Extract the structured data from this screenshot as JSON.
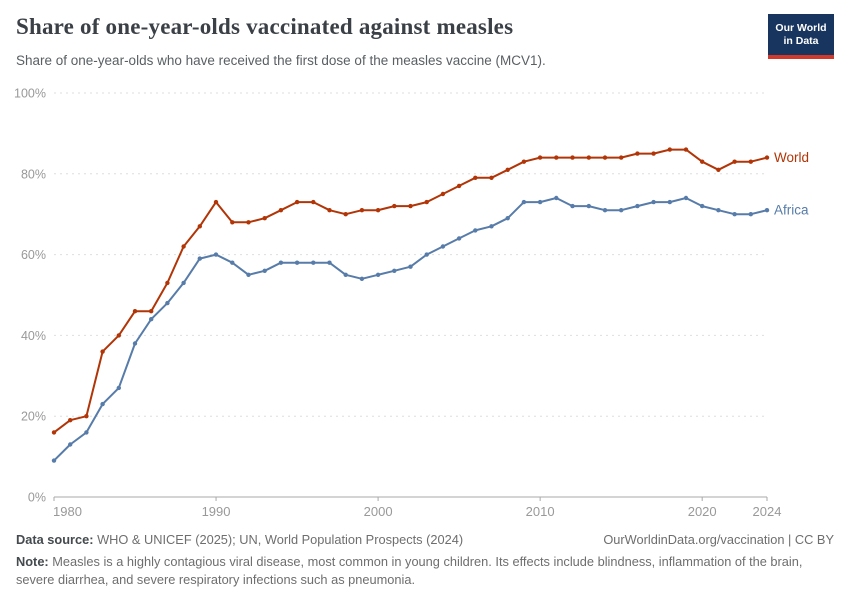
{
  "header": {
    "logo": {
      "line1": "Our World",
      "line2": "in Data",
      "bg_color": "#17355f",
      "accent_color": "#d0392b"
    }
  },
  "chart_data": {
    "type": "line",
    "title": "Share of one-year-olds vaccinated against measles",
    "subtitle": "Share of one-year-olds who have received the first dose of the measles vaccine (MCV1).",
    "x": [
      1980,
      1981,
      1982,
      1983,
      1984,
      1985,
      1986,
      1987,
      1988,
      1989,
      1990,
      1991,
      1992,
      1993,
      1994,
      1995,
      1996,
      1997,
      1998,
      1999,
      2000,
      2001,
      2002,
      2003,
      2004,
      2005,
      2006,
      2007,
      2008,
      2009,
      2010,
      2011,
      2012,
      2013,
      2014,
      2015,
      2016,
      2017,
      2018,
      2019,
      2020,
      2021,
      2022,
      2023,
      2024
    ],
    "series": [
      {
        "name": "World",
        "color": "#b13507",
        "values": [
          16,
          19,
          20,
          36,
          40,
          46,
          46,
          53,
          62,
          67,
          73,
          68,
          68,
          69,
          71,
          73,
          73,
          71,
          70,
          71,
          71,
          72,
          72,
          73,
          75,
          77,
          79,
          79,
          81,
          83,
          84,
          84,
          84,
          84,
          84,
          84,
          85,
          85,
          86,
          86,
          83,
          81,
          83,
          83,
          84
        ]
      },
      {
        "name": "Africa",
        "color": "#577ca9",
        "values": [
          9,
          13,
          16,
          23,
          27,
          38,
          44,
          48,
          53,
          59,
          60,
          58,
          55,
          56,
          58,
          58,
          58,
          58,
          55,
          54,
          55,
          56,
          57,
          60,
          62,
          64,
          66,
          67,
          69,
          73,
          73,
          74,
          72,
          72,
          71,
          71,
          72,
          73,
          73,
          74,
          72,
          71,
          70,
          70,
          71
        ]
      }
    ],
    "xlabel": "",
    "ylabel": "",
    "xlim": [
      1980,
      2024
    ],
    "ylim": [
      0,
      100
    ],
    "yticks": [
      0,
      20,
      40,
      60,
      80,
      100
    ],
    "ytick_suffix": "%",
    "xticks": [
      1980,
      1990,
      2000,
      2010,
      2020,
      2024
    ],
    "grid": "dashed horizontal",
    "legend_position": "end-of-line labels"
  },
  "footer": {
    "datasource_label": "Data source:",
    "datasource_text": " WHO & UNICEF (2025); UN, World Population Prospects (2024)",
    "citation_link": "OurWorldinData.org/vaccination",
    "license_sep": " | ",
    "license": "CC BY",
    "note_label": "Note:",
    "note_text": " Measles is a highly contagious viral disease, most common in young children. Its effects include blindness, inflammation of the brain, severe diarrhea, and severe respiratory infections such as pneumonia."
  }
}
